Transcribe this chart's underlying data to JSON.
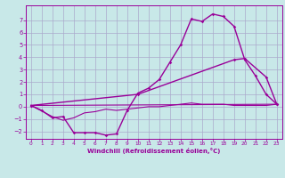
{
  "background_color": "#c8e8e8",
  "grid_color": "#aaaacc",
  "line_color": "#990099",
  "xlabel": "Windchill (Refroidissement éolien,°C)",
  "xlim": [
    -0.5,
    23.5
  ],
  "ylim": [
    -2.6,
    8.2
  ],
  "yticks": [
    -2,
    -1,
    0,
    1,
    2,
    3,
    4,
    5,
    6,
    7
  ],
  "xticks": [
    0,
    1,
    2,
    3,
    4,
    5,
    6,
    7,
    8,
    9,
    10,
    11,
    12,
    13,
    14,
    15,
    16,
    17,
    18,
    19,
    20,
    21,
    22,
    23
  ],
  "lines": [
    {
      "x": [
        0,
        1,
        2,
        3,
        4,
        5,
        6,
        7,
        8,
        9,
        10,
        11,
        12,
        13,
        14,
        15,
        16,
        17,
        18,
        19,
        20,
        21,
        22,
        23
      ],
      "y": [
        0.1,
        -0.3,
        -0.9,
        -0.8,
        -2.1,
        -2.1,
        -2.1,
        -2.3,
        -2.2,
        -0.3,
        1.1,
        1.5,
        2.2,
        3.6,
        5.0,
        7.1,
        6.9,
        7.5,
        7.3,
        6.5,
        3.8,
        2.5,
        1.0,
        0.2
      ],
      "marker": true,
      "linewidth": 1.0
    },
    {
      "x": [
        0,
        10,
        19,
        20,
        22,
        23
      ],
      "y": [
        0.1,
        1.0,
        3.8,
        3.9,
        2.4,
        0.2
      ],
      "marker": true,
      "linewidth": 1.0
    },
    {
      "x": [
        0,
        2,
        3,
        4,
        5,
        6,
        7,
        8,
        9,
        10,
        11,
        12,
        13,
        14,
        15,
        16,
        17,
        18,
        19,
        20,
        21,
        22,
        23
      ],
      "y": [
        0.1,
        -0.8,
        -1.1,
        -0.9,
        -0.5,
        -0.4,
        -0.2,
        -0.3,
        -0.2,
        -0.1,
        0.0,
        0.0,
        0.1,
        0.2,
        0.3,
        0.2,
        0.2,
        0.2,
        0.1,
        0.1,
        0.1,
        0.1,
        0.2
      ],
      "marker": false,
      "linewidth": 0.8
    },
    {
      "x": [
        0,
        23
      ],
      "y": [
        0.1,
        0.2
      ],
      "marker": false,
      "linewidth": 0.8
    }
  ]
}
